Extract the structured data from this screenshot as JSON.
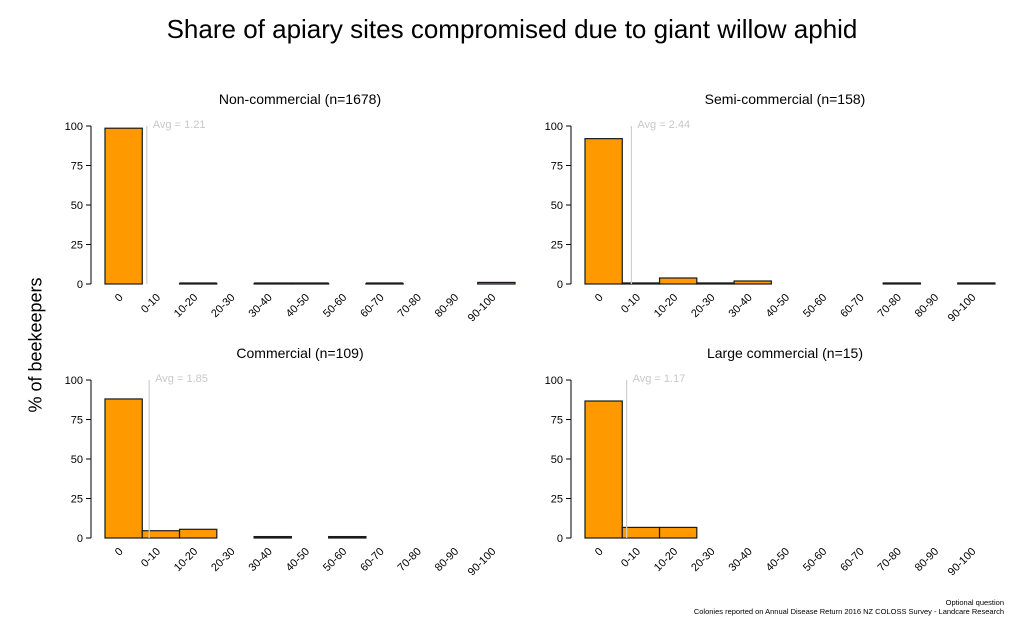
{
  "title": "Share of apiary sites compromised due to giant willow aphid",
  "ylabel": "% of beekeepers",
  "footer": {
    "line1": "Optional question",
    "line2": "Colonies reported on Annual Disease Return 2016 NZ COLOSS Survey - Landcare Research"
  },
  "colors": {
    "bar": "#ff9900",
    "bar_edge": "#1a1a1a",
    "avg_line": "#cfcfcf",
    "avg_text": "#c8c8c8"
  },
  "chart_data": [
    {
      "type": "bar",
      "title": "Non-commercial (n=1678)",
      "categories": [
        "0",
        "0-10",
        "10-20",
        "20-30",
        "30-40",
        "40-50",
        "50-60",
        "60-70",
        "70-80",
        "80-90",
        "90-100"
      ],
      "values": [
        98.6,
        0,
        0.3,
        0,
        0.3,
        0.3,
        0,
        0.2,
        0,
        0,
        1.0
      ],
      "ylim": [
        0,
        100
      ],
      "yticks": [
        0,
        25,
        50,
        75,
        100
      ],
      "avg": 1.21,
      "avg_label": "Avg = 1.21"
    },
    {
      "type": "bar",
      "title": "Semi-commercial (n=158)",
      "categories": [
        "0",
        "0-10",
        "10-20",
        "20-30",
        "30-40",
        "40-50",
        "50-60",
        "60-70",
        "70-80",
        "80-90",
        "90-100"
      ],
      "values": [
        92,
        0.6,
        3.8,
        0.6,
        1.9,
        0,
        0,
        0,
        0.6,
        0,
        0.6
      ],
      "ylim": [
        0,
        100
      ],
      "yticks": [
        0,
        25,
        50,
        75,
        100
      ],
      "avg": 2.44,
      "avg_label": "Avg = 2.44"
    },
    {
      "type": "bar",
      "title": "Commercial (n=109)",
      "categories": [
        "0",
        "0-10",
        "10-20",
        "20-30",
        "30-40",
        "40-50",
        "50-60",
        "60-70",
        "70-80",
        "80-90",
        "90-100"
      ],
      "values": [
        88,
        4.6,
        5.5,
        0,
        0.9,
        0,
        0.9,
        0,
        0,
        0,
        0
      ],
      "ylim": [
        0,
        100
      ],
      "yticks": [
        0,
        25,
        50,
        75,
        100
      ],
      "avg": 1.85,
      "avg_label": "Avg = 1.85"
    },
    {
      "type": "bar",
      "title": "Large commercial (n=15)",
      "categories": [
        "0",
        "0-10",
        "10-20",
        "20-30",
        "30-40",
        "40-50",
        "50-60",
        "60-70",
        "70-80",
        "80-90",
        "90-100"
      ],
      "values": [
        86.7,
        6.7,
        6.7,
        0,
        0,
        0,
        0,
        0,
        0,
        0,
        0
      ],
      "ylim": [
        0,
        100
      ],
      "yticks": [
        0,
        25,
        50,
        75,
        100
      ],
      "avg": 1.17,
      "avg_label": "Avg = 1.17"
    }
  ]
}
